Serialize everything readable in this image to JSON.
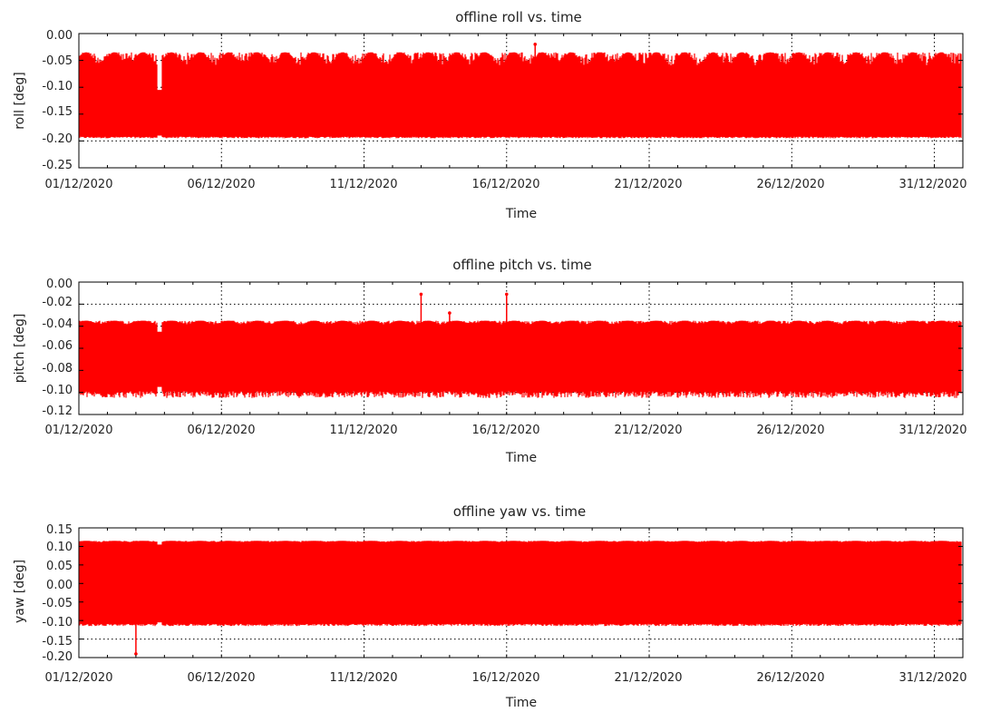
{
  "chart_data": [
    {
      "type": "line",
      "title": "offline roll vs. time",
      "xlabel": "Time",
      "ylabel": "roll [deg]",
      "x_ticks": [
        "01/12/2020",
        "06/12/2020",
        "11/12/2020",
        "16/12/2020",
        "21/12/2020",
        "26/12/2020",
        "31/12/2020"
      ],
      "y_ticks": [
        "0.00",
        "-0.05",
        "-0.10",
        "-0.15",
        "-0.20",
        "-0.25"
      ],
      "xlim": [
        "2020-12-01",
        "2021-01-01"
      ],
      "ylim": [
        -0.25,
        0.0
      ],
      "grid": true,
      "color": "#ff0000",
      "envelope": {
        "upper_typical": -0.035,
        "lower_typical": -0.195,
        "dense_core": [
          -0.19,
          -0.105
        ],
        "outliers": [
          {
            "x": "2020-12-17",
            "y": -0.02
          }
        ]
      }
    },
    {
      "type": "line",
      "title": "offline pitch vs. time",
      "xlabel": "Time",
      "ylabel": "pitch [deg]",
      "x_ticks": [
        "01/12/2020",
        "06/12/2020",
        "11/12/2020",
        "16/12/2020",
        "21/12/2020",
        "26/12/2020",
        "31/12/2020"
      ],
      "y_ticks": [
        "0.00",
        "-0.02",
        "-0.04",
        "-0.06",
        "-0.08",
        "-0.10",
        "-0.12"
      ],
      "xlim": [
        "2020-12-01",
        "2021-01-01"
      ],
      "ylim": [
        -0.12,
        0.0
      ],
      "grid": true,
      "color": "#ff0000",
      "envelope": {
        "upper_typical": -0.035,
        "lower_typical": -0.105,
        "dense_core": [
          -0.095,
          -0.045
        ],
        "outliers": [
          {
            "x": "2020-12-13",
            "y": -0.011
          },
          {
            "x": "2020-12-16",
            "y": -0.011
          },
          {
            "x": "2020-12-14",
            "y": -0.028
          }
        ]
      }
    },
    {
      "type": "line",
      "title": "offline yaw vs. time",
      "xlabel": "Time",
      "ylabel": "yaw [deg]",
      "x_ticks": [
        "01/12/2020",
        "06/12/2020",
        "11/12/2020",
        "16/12/2020",
        "21/12/2020",
        "26/12/2020",
        "31/12/2020"
      ],
      "y_ticks": [
        "0.15",
        "0.10",
        "0.05",
        "0.00",
        "-0.05",
        "-0.10",
        "-0.15",
        "-0.20"
      ],
      "xlim": [
        "2020-12-01",
        "2021-01-01"
      ],
      "ylim": [
        -0.2,
        0.15
      ],
      "grid": true,
      "color": "#ff0000",
      "envelope": {
        "upper_typical": 0.115,
        "lower_typical": -0.115,
        "dense_core": [
          -0.105,
          0.105
        ],
        "outliers": [
          {
            "x": "2020-12-03",
            "y": -0.19
          }
        ]
      }
    }
  ]
}
